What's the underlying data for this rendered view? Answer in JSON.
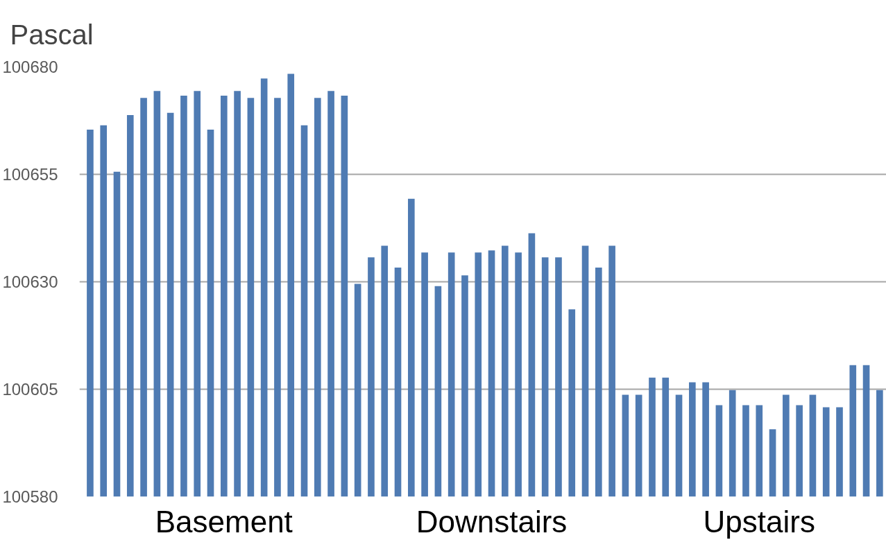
{
  "chart_data": {
    "type": "bar",
    "ylabel": "Pascal",
    "categories": [
      null,
      null,
      null,
      null,
      null,
      null,
      null,
      null,
      null,
      null,
      "Basement",
      null,
      null,
      null,
      null,
      null,
      null,
      null,
      null,
      null,
      null,
      null,
      null,
      null,
      null,
      null,
      null,
      null,
      null,
      null,
      "Downstairs",
      null,
      null,
      null,
      null,
      null,
      null,
      null,
      null,
      null,
      null,
      null,
      null,
      null,
      null,
      null,
      null,
      null,
      null,
      null,
      "Upstairs",
      null,
      null,
      null,
      null,
      null,
      null,
      null,
      null,
      null
    ],
    "values": [
      100665.4,
      100666.4,
      100655.6,
      100668.8,
      100672.8,
      100674.4,
      100669.3,
      100673.3,
      100674.4,
      100665.4,
      100673.3,
      100674.4,
      100672.8,
      100677.3,
      100672.8,
      100678.4,
      100666.4,
      100672.8,
      100674.4,
      100673.3,
      100629.5,
      100635.7,
      100638.4,
      100633.3,
      100649.3,
      100636.8,
      100629.0,
      100636.8,
      100631.5,
      100636.8,
      100637.3,
      100638.4,
      100636.8,
      100641.3,
      100635.7,
      100635.7,
      100623.6,
      100638.4,
      100633.3,
      100638.4,
      100603.7,
      100603.7,
      100607.7,
      100607.7,
      100603.7,
      100606.6,
      100606.6,
      100601.3,
      100604.8,
      100601.3,
      100601.3,
      100595.7,
      100603.7,
      100601.3,
      100603.7,
      100600.8,
      100600.8,
      100610.6,
      100610.6,
      100604.8
    ],
    "color": "#4f7bb3",
    "ylim": [
      100580,
      100680
    ],
    "yticks": [
      100580,
      100605,
      100630,
      100655,
      100680
    ],
    "grid": "y"
  }
}
